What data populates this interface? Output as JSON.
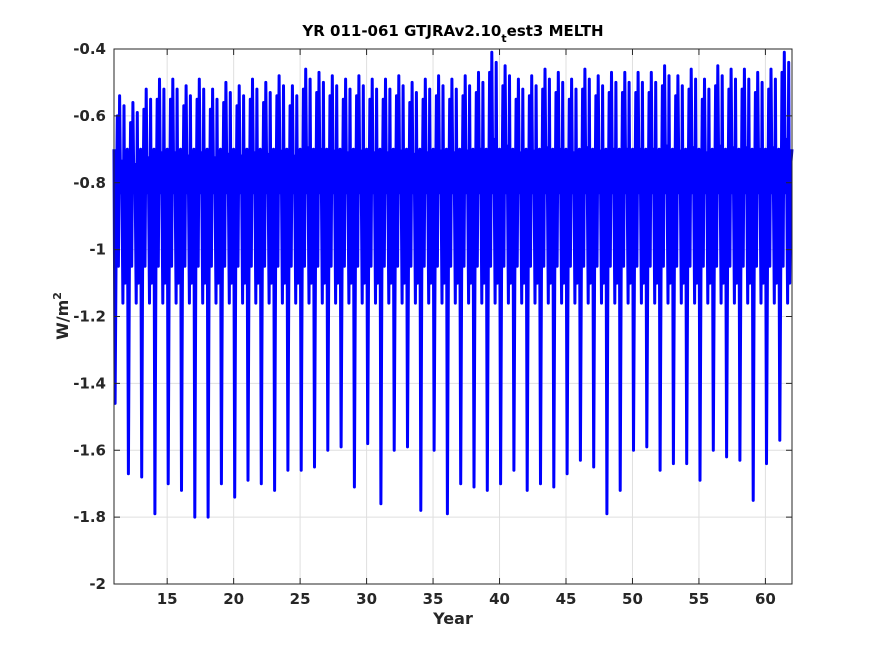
{
  "chart_data": {
    "type": "line",
    "title_main": "YR 011-061 GTJRAv2.10",
    "title_sub": "t",
    "title_tail": "est3 MELTH",
    "xlabel": "Year",
    "ylabel_main": "W/m",
    "ylabel_sup": "2",
    "xlim": [
      11,
      62
    ],
    "ylim": [
      -2,
      -0.4
    ],
    "xticks": [
      15,
      20,
      25,
      30,
      35,
      40,
      45,
      50,
      55,
      60
    ],
    "yticks": [
      -2,
      -1.8,
      -1.6,
      -1.4,
      -1.2,
      -1,
      -0.8,
      -0.6,
      -0.4
    ],
    "grid": true,
    "series": [
      {
        "color": "#0000ff",
        "yearly_min": [
          -1.46,
          -1.67,
          -1.68,
          -1.79,
          -1.7,
          -1.72,
          -1.8,
          -1.8,
          -1.7,
          -1.74,
          -1.69,
          -1.7,
          -1.72,
          -1.66,
          -1.66,
          -1.65,
          -1.6,
          -1.59,
          -1.71,
          -1.58,
          -1.76,
          -1.6,
          -1.59,
          -1.78,
          -1.6,
          -1.79,
          -1.7,
          -1.71,
          -1.72,
          -1.7,
          -1.66,
          -1.72,
          -1.7,
          -1.71,
          -1.67,
          -1.63,
          -1.65,
          -1.79,
          -1.72,
          -1.6,
          -1.59,
          -1.66,
          -1.64,
          -1.64,
          -1.69,
          -1.6,
          -1.62,
          -1.63,
          -1.75,
          -1.64,
          -1.57,
          -1.65
        ],
        "yearly_max": [
          -0.6,
          -0.62,
          -0.58,
          -0.55,
          -0.55,
          -0.57,
          -0.55,
          -0.58,
          -0.56,
          -0.57,
          -0.55,
          -0.56,
          -0.54,
          -0.57,
          -0.52,
          -0.53,
          -0.54,
          -0.55,
          -0.54,
          -0.55,
          -0.55,
          -0.54,
          -0.56,
          -0.55,
          -0.54,
          -0.55,
          -0.54,
          -0.53,
          -0.47,
          -0.51,
          -0.55,
          -0.54,
          -0.52,
          -0.53,
          -0.55,
          -0.52,
          -0.54,
          -0.53,
          -0.53,
          -0.53,
          -0.53,
          -0.51,
          -0.54,
          -0.52,
          -0.55,
          -0.51,
          -0.52,
          -0.52,
          -0.53,
          -0.52,
          -0.47,
          -0.54
        ],
        "mid_high": -0.83,
        "mid_low": -1.05
      }
    ]
  }
}
